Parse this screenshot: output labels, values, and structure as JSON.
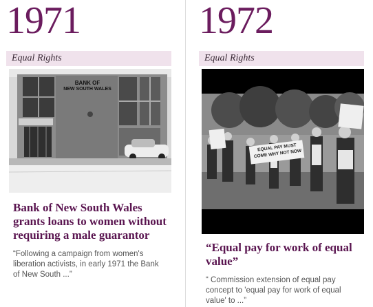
{
  "left": {
    "year": "1971",
    "category": "Equal Rights",
    "sign_line1": "BANK OF",
    "sign_line2": "NEW SOUTH WALES",
    "headline": "Bank of New South Wales grants loans to women without requiring a male guarantor",
    "excerpt": "“Following a campaign from women's liberation activists, in early 1971 the Bank of New South ...”"
  },
  "right": {
    "year": "1972",
    "category": "Equal Rights",
    "banner_text": "EQUAL PAY MUST COME WHY NOT NOW",
    "headline": "“Equal pay for work of equal value”",
    "excerpt": "“ Commission extension of equal pay concept to 'equal pay for work of equal value' to ...”"
  }
}
